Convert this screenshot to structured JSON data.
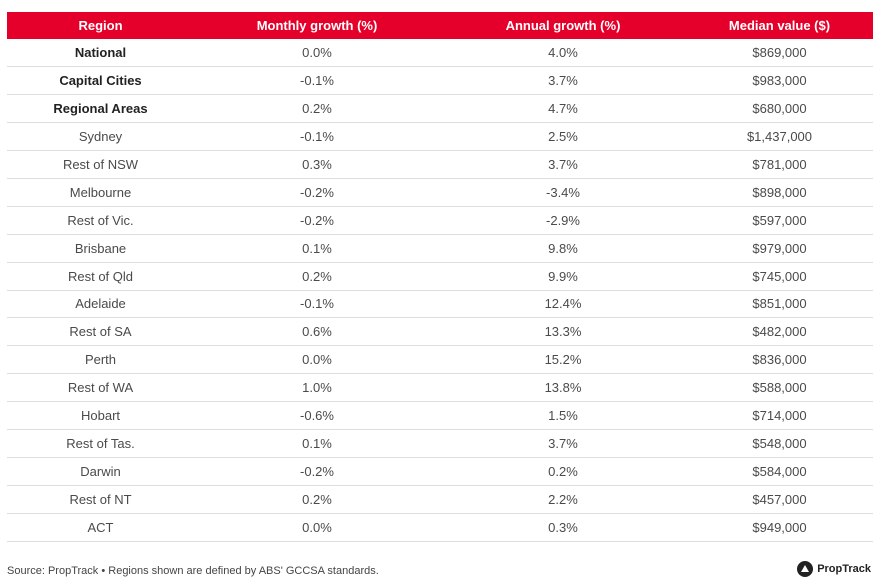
{
  "table": {
    "headers": [
      "Region",
      "Monthly growth (%)",
      "Annual growth (%)",
      "Median value ($)"
    ],
    "rows": [
      {
        "region": "National",
        "monthly": "0.0%",
        "annual": "4.0%",
        "median": "$869,000",
        "bold": true
      },
      {
        "region": "Capital Cities",
        "monthly": "-0.1%",
        "annual": "3.7%",
        "median": "$983,000",
        "bold": true
      },
      {
        "region": "Regional Areas",
        "monthly": "0.2%",
        "annual": "4.7%",
        "median": "$680,000",
        "bold": true
      },
      {
        "region": "Sydney",
        "monthly": "-0.1%",
        "annual": "2.5%",
        "median": "$1,437,000",
        "bold": false
      },
      {
        "region": "Rest of NSW",
        "monthly": "0.3%",
        "annual": "3.7%",
        "median": "$781,000",
        "bold": false
      },
      {
        "region": "Melbourne",
        "monthly": "-0.2%",
        "annual": "-3.4%",
        "median": "$898,000",
        "bold": false
      },
      {
        "region": "Rest of Vic.",
        "monthly": "-0.2%",
        "annual": "-2.9%",
        "median": "$597,000",
        "bold": false
      },
      {
        "region": "Brisbane",
        "monthly": "0.1%",
        "annual": "9.8%",
        "median": "$979,000",
        "bold": false
      },
      {
        "region": "Rest of Qld",
        "monthly": "0.2%",
        "annual": "9.9%",
        "median": "$745,000",
        "bold": false
      },
      {
        "region": "Adelaide",
        "monthly": "-0.1%",
        "annual": "12.4%",
        "median": "$851,000",
        "bold": false
      },
      {
        "region": "Rest of SA",
        "monthly": "0.6%",
        "annual": "13.3%",
        "median": "$482,000",
        "bold": false
      },
      {
        "region": "Perth",
        "monthly": "0.0%",
        "annual": "15.2%",
        "median": "$836,000",
        "bold": false
      },
      {
        "region": "Rest of WA",
        "monthly": "1.0%",
        "annual": "13.8%",
        "median": "$588,000",
        "bold": false
      },
      {
        "region": "Hobart",
        "monthly": "-0.6%",
        "annual": "1.5%",
        "median": "$714,000",
        "bold": false
      },
      {
        "region": "Rest of Tas.",
        "monthly": "0.1%",
        "annual": "3.7%",
        "median": "$548,000",
        "bold": false
      },
      {
        "region": "Darwin",
        "monthly": "-0.2%",
        "annual": "0.2%",
        "median": "$584,000",
        "bold": false
      },
      {
        "region": "Rest of NT",
        "monthly": "0.2%",
        "annual": "2.2%",
        "median": "$457,000",
        "bold": false
      },
      {
        "region": "ACT",
        "monthly": "0.0%",
        "annual": "0.3%",
        "median": "$949,000",
        "bold": false
      }
    ]
  },
  "footer": {
    "source": "Source: PropTrack • Regions shown are defined by ABS' GCCSA standards.",
    "logo_text": "PropTrack",
    "logo_icon": "proptrack-logo-icon"
  },
  "colors": {
    "header_bg": "#e4002b",
    "header_text": "#ffffff",
    "row_divider": "#dddddd"
  }
}
